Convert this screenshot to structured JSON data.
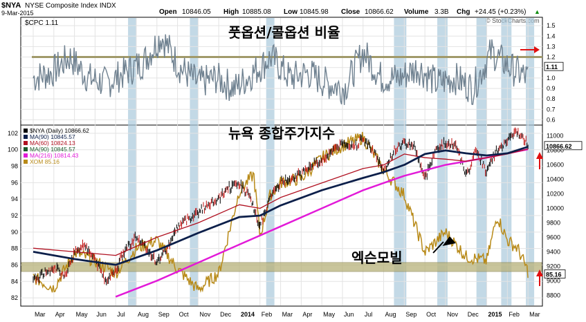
{
  "header": {
    "symbol": "$NYA",
    "name": "NYSE Composite Index INDX",
    "date": "9-Mar-2015",
    "open_label": "Open",
    "open": "10846.05",
    "high_label": "High",
    "high": "10885.08",
    "low_label": "Low",
    "low": "10845.98",
    "close_label": "Close",
    "close": "10866.62",
    "volume_label": "Volume",
    "volume": "3.3B",
    "chg_label": "Chg",
    "chg": "+24.45 (+0.23%)",
    "trend_glyph": "▲",
    "watermark": "© StockCharts.com"
  },
  "colors": {
    "bg": "#ffffff",
    "frame": "#000000",
    "grid": "#e3e3e3",
    "band": "#a9c9dc",
    "cpc_line": "#6f8190",
    "cpc_ref": "#a19a6a",
    "price_up": "#000000",
    "ma90": "#0c1f4a",
    "ma60": "#b01020",
    "ma216": "#e21ad8",
    "xom": "#b88a18",
    "support_band": "#b8b27a",
    "annotation": "#1a1ac8",
    "arrow_red": "#e01010"
  },
  "cpc": {
    "title": "$CPC 1.11",
    "annotation": "풋옵션/콜옵션 비율",
    "last_value": "1.11",
    "y_ticks": [
      "1.5",
      "1.4",
      "1.3",
      "1.2",
      "1.1",
      "1.0",
      "0.9",
      "0.8",
      "0.7",
      "0.6"
    ]
  },
  "main": {
    "annotation": "뉴욕 종합주가지수",
    "xom_annotation": "엑슨모빌",
    "last_nya": "10866.62",
    "last_xom": "85.16",
    "legend": [
      {
        "key": "nya",
        "label": "$NYA (Daily) 10866.62",
        "color": "#000000"
      },
      {
        "key": "ma90a",
        "label": "MA(90) 10845.57",
        "color": "#0c1f4a"
      },
      {
        "key": "ma60",
        "label": "MA(60) 10824.13",
        "color": "#b01020"
      },
      {
        "key": "ma90b",
        "label": "MA(90) 10845.57",
        "color": "#1a5a2a"
      },
      {
        "key": "ma216",
        "label": "MA(216) 10814.43",
        "color": "#e21ad8"
      },
      {
        "key": "xom",
        "label": "XOM 85.16",
        "color": "#b88a18"
      }
    ],
    "left_ticks": [
      "102",
      "100",
      "98",
      "96",
      "94",
      "92",
      "90",
      "88",
      "86",
      "84",
      "82"
    ],
    "right_ticks": [
      "11000",
      "10800",
      "10600",
      "10400",
      "10200",
      "10000",
      "9800",
      "9600",
      "9400",
      "9200",
      "9000",
      "8800"
    ]
  },
  "x_axis": {
    "labels": [
      "Mar",
      "Apr",
      "May",
      "Jun",
      "Jul",
      "Aug",
      "Sep",
      "Oct",
      "Nov",
      "Dec",
      "2014",
      "Feb",
      "Mar",
      "Apr",
      "May",
      "Jun",
      "Jul",
      "Aug",
      "Sep",
      "Oct",
      "Nov",
      "Dec",
      "2015",
      "Feb",
      "Mar"
    ],
    "bold": [
      "2014",
      "2015"
    ]
  },
  "chart_data": {
    "type": "line",
    "x_start": "2013-03-01",
    "x_end": "2015-03-09",
    "panels": [
      {
        "name": "$CPC",
        "y_range": [
          0.55,
          1.58
        ],
        "reference_line": 1.2,
        "series": [
          {
            "name": "$CPC",
            "points": [
              [
                0,
                1.0
              ],
              [
                1,
                1.05
              ],
              [
                2,
                1.2
              ],
              [
                3,
                1.0
              ],
              [
                4,
                0.95
              ],
              [
                5,
                1.05
              ],
              [
                6,
                1.15
              ],
              [
                7,
                1.4
              ],
              [
                8,
                1.1
              ],
              [
                9,
                0.95
              ],
              [
                10,
                1.0
              ],
              [
                11,
                0.9
              ],
              [
                12,
                1.05
              ],
              [
                13,
                1.2
              ],
              [
                14,
                1.0
              ],
              [
                15,
                1.05
              ],
              [
                16,
                0.95
              ],
              [
                17,
                0.9
              ],
              [
                18,
                1.25
              ],
              [
                19,
                1.0
              ],
              [
                20,
                1.0
              ],
              [
                21,
                1.1
              ],
              [
                22,
                0.95
              ],
              [
                23,
                1.0
              ],
              [
                24,
                0.9
              ],
              [
                25,
                1.25
              ],
              [
                26,
                1.1
              ],
              [
                27,
                1.0
              ]
            ],
            "last": 1.11
          }
        ]
      },
      {
        "name": "$NYA",
        "left_axis": "XOM",
        "left_range": [
          81,
          103
        ],
        "right_axis": "NYA",
        "right_range": [
          8650,
          11150
        ],
        "series": [
          {
            "name": "$NYA",
            "axis": "right",
            "points": [
              [
                0,
                9000
              ],
              [
                0.5,
                9100
              ],
              [
                1,
                9200
              ],
              [
                1.5,
                9050
              ],
              [
                2,
                9400
              ],
              [
                2.5,
                9500
              ],
              [
                3,
                9300
              ],
              [
                3.5,
                9000
              ],
              [
                4,
                9150
              ],
              [
                4.5,
                9450
              ],
              [
                5,
                9600
              ],
              [
                5.5,
                9450
              ],
              [
                6,
                9250
              ],
              [
                6.5,
                9450
              ],
              [
                7,
                9750
              ],
              [
                7.5,
                9850
              ],
              [
                8,
                9950
              ],
              [
                8.5,
                10050
              ],
              [
                9,
                10150
              ],
              [
                9.5,
                10280
              ],
              [
                10,
                10350
              ],
              [
                10.5,
                10150
              ],
              [
                11,
                9750
              ],
              [
                11.5,
                10150
              ],
              [
                12,
                10350
              ],
              [
                12.5,
                10420
              ],
              [
                13,
                10470
              ],
              [
                13.5,
                10600
              ],
              [
                14,
                10650
              ],
              [
                14.5,
                10800
              ],
              [
                15,
                10900
              ],
              [
                15.5,
                10850
              ],
              [
                16,
                10950
              ],
              [
                16.5,
                10800
              ],
              [
                17,
                10500
              ],
              [
                17.5,
                10800
              ],
              [
                18,
                10900
              ],
              [
                18.5,
                10850
              ],
              [
                19,
                10400
              ],
              [
                19.5,
                10800
              ],
              [
                20,
                10900
              ],
              [
                20.5,
                10900
              ],
              [
                21,
                10450
              ],
              [
                21.5,
                10800
              ],
              [
                22,
                10500
              ],
              [
                22.5,
                10800
              ],
              [
                23,
                10950
              ],
              [
                23.5,
                11050
              ],
              [
                24,
                10870
              ]
            ]
          },
          {
            "name": "MA(90)",
            "axis": "right",
            "points": [
              [
                0,
                9400
              ],
              [
                2,
                9300
              ],
              [
                4,
                9220
              ],
              [
                6,
                9420
              ],
              [
                8,
                9660
              ],
              [
                10,
                9880
              ],
              [
                11,
                9900
              ],
              [
                12,
                10040
              ],
              [
                14,
                10250
              ],
              [
                16,
                10420
              ],
              [
                17,
                10500
              ],
              [
                18,
                10600
              ],
              [
                19,
                10750
              ],
              [
                20,
                10800
              ],
              [
                21,
                10760
              ],
              [
                22,
                10730
              ],
              [
                23,
                10760
              ],
              [
                24,
                10850
              ]
            ]
          },
          {
            "name": "MA(60)",
            "axis": "right",
            "points": [
              [
                0,
                9450
              ],
              [
                2,
                9400
              ],
              [
                4,
                9350
              ],
              [
                6,
                9600
              ],
              [
                8,
                9800
              ],
              [
                10,
                10050
              ],
              [
                11,
                10000
              ],
              [
                12,
                10150
              ],
              [
                14,
                10350
              ],
              [
                16,
                10550
              ],
              [
                17,
                10600
              ],
              [
                18,
                10750
              ],
              [
                19,
                10700
              ],
              [
                20,
                10680
              ],
              [
                21,
                10650
              ],
              [
                22,
                10700
              ],
              [
                23,
                10750
              ],
              [
                24,
                10820
              ]
            ]
          },
          {
            "name": "MA(216)",
            "axis": "right",
            "points": [
              [
                4,
                8780
              ],
              [
                6,
                9000
              ],
              [
                8,
                9250
              ],
              [
                10,
                9500
              ],
              [
                12,
                9750
              ],
              [
                14,
                10000
              ],
              [
                16,
                10250
              ],
              [
                17,
                10350
              ],
              [
                18,
                10450
              ],
              [
                20,
                10600
              ],
              [
                22,
                10700
              ],
              [
                24,
                10815
              ]
            ]
          },
          {
            "name": "XOM",
            "axis": "left",
            "points": [
              [
                0,
                84.5
              ],
              [
                1,
                83.2
              ],
              [
                2,
                87.5
              ],
              [
                3,
                86.5
              ],
              [
                4,
                85.0
              ],
              [
                5,
                88.0
              ],
              [
                6,
                89.0
              ],
              [
                7,
                85.5
              ],
              [
                8,
                83.0
              ],
              [
                9,
                85.0
              ],
              [
                10,
                95.0
              ],
              [
                10.7,
                97.0
              ],
              [
                11,
                89.5
              ],
              [
                11.5,
                94.5
              ],
              [
                12,
                96.0
              ],
              [
                13,
                96.5
              ],
              [
                14,
                99.0
              ],
              [
                15,
                100.5
              ],
              [
                16,
                101.5
              ],
              [
                17,
                97.5
              ],
              [
                18,
                94.5
              ],
              [
                19,
                87.5
              ],
              [
                20,
                90.0
              ],
              [
                21,
                87.0
              ],
              [
                22,
                86.5
              ],
              [
                22.5,
                92.0
              ],
              [
                23,
                89.0
              ],
              [
                23.5,
                88.0
              ],
              [
                24,
                85.2
              ]
            ]
          }
        ],
        "support_band": [
          85.2,
          86.3
        ]
      }
    ]
  }
}
